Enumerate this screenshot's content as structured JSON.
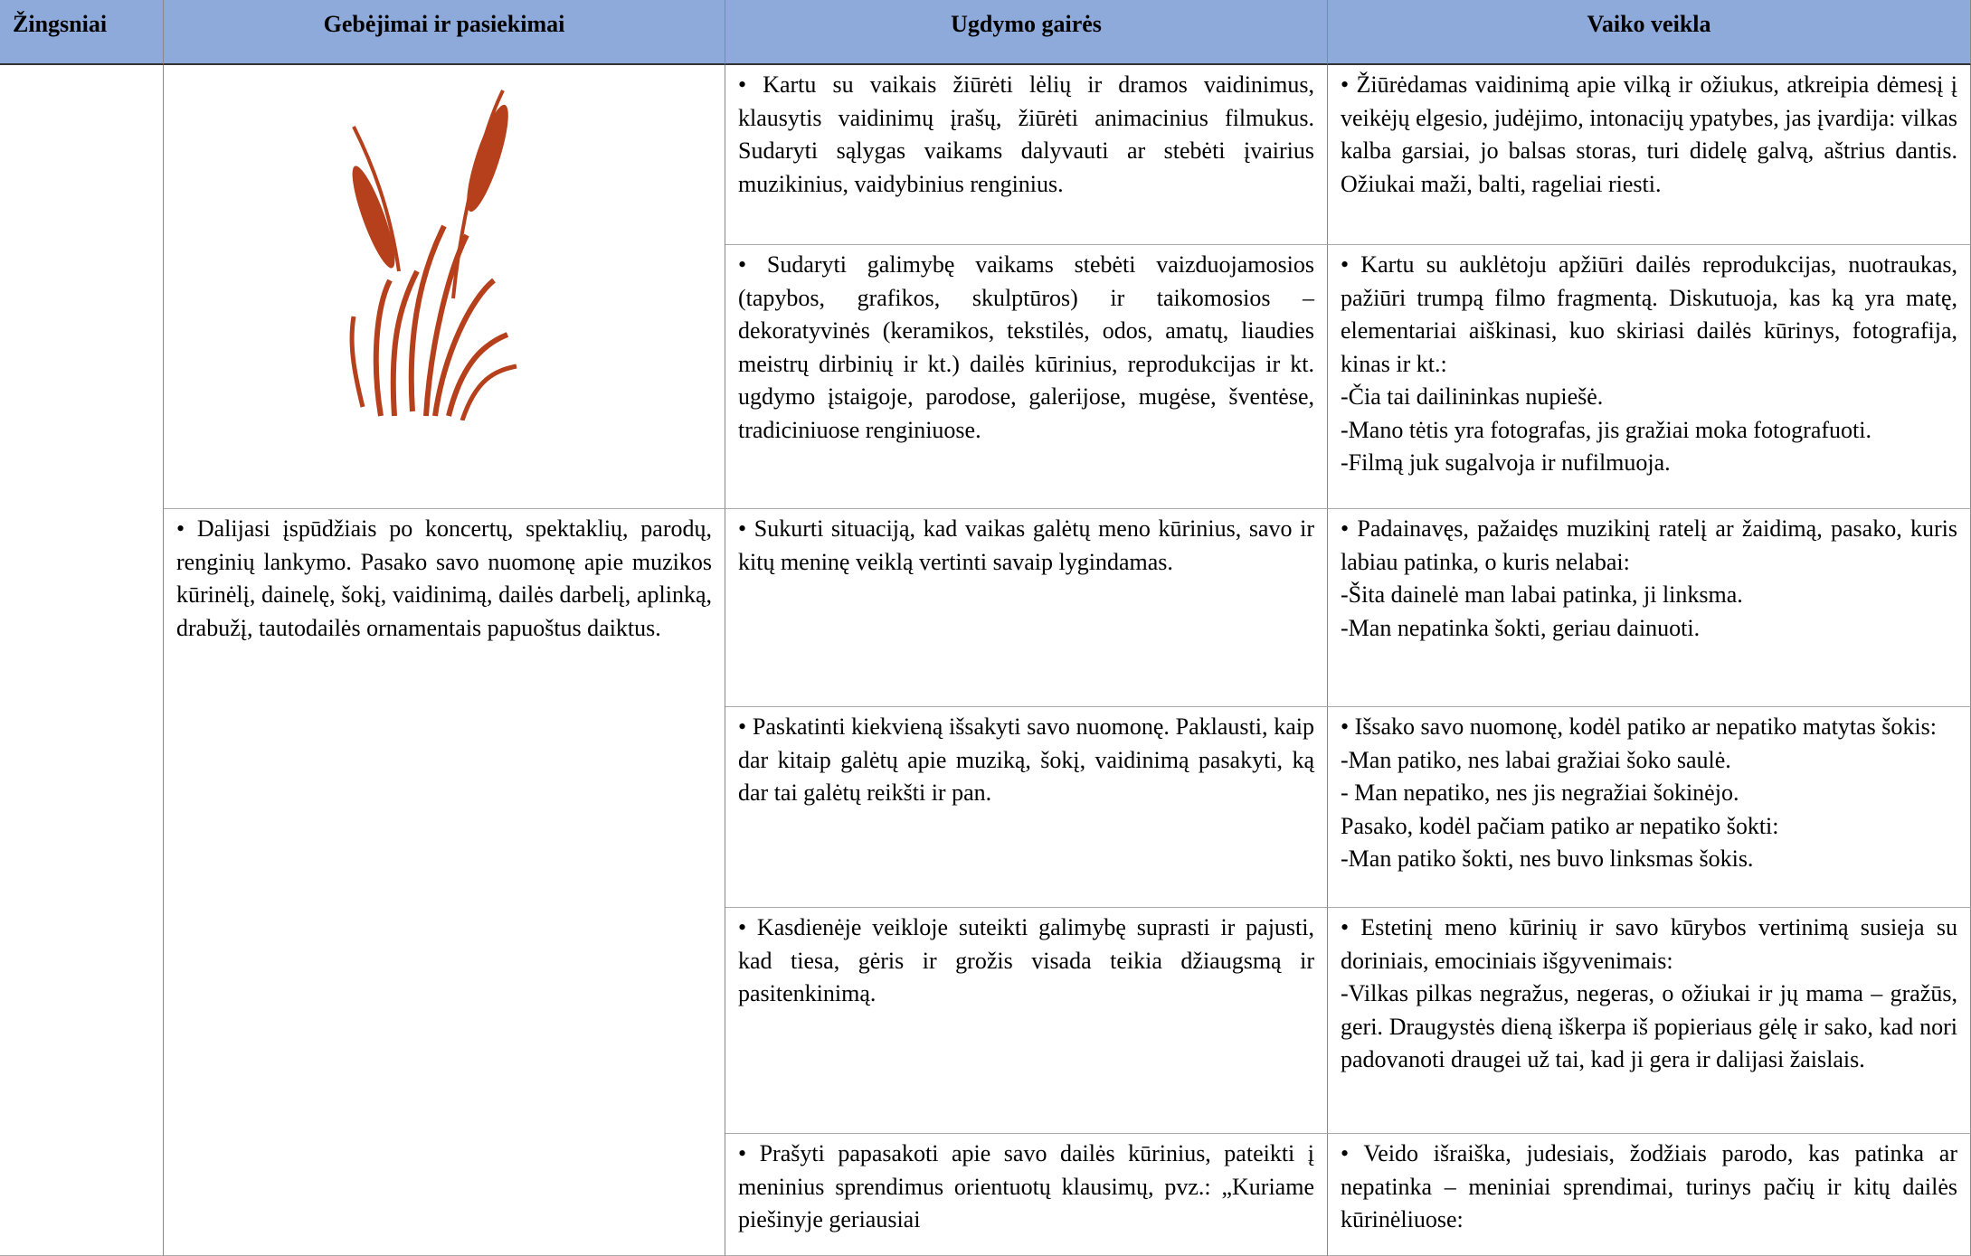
{
  "table": {
    "header": [
      "Žingsniai",
      "Gebėjimai ir pasiekimai",
      "Ugdymo gairės",
      "Vaiko veikla"
    ],
    "skills": [
      "• Dalijasi įspūdžiais po koncertų, spektaklių, parodų, renginių lankymo. Pasako savo nuomonę apie muzikos kūrinėlį, dainelę, šokį, vaidinimą, dailės darbelį, aplinką, drabužį, tautodailės ornamentais papuoštus daiktus."
    ],
    "rows": [
      {
        "guidance": [
          "• Kartu su vaikais žiūrėti lėlių ir dramos vaidinimus, klausytis vaidinimų įrašų, žiūrėti animacinius filmukus. Sudaryti sąlygas vaikams dalyvauti ar stebėti įvairius muzikinius, vaidybinius renginius."
        ],
        "activity": [
          "• Žiūrėdamas vaidinimą apie vilką ir ožiukus, atkreipia dėmesį į veikėjų elgesio, judėjimo, intonacijų ypatybes, jas įvardija: vilkas kalba garsiai, jo balsas storas, turi didelę galvą, aštrius dantis. Ožiukai maži, balti, rageliai riesti."
        ]
      },
      {
        "guidance": [
          "• Sudaryti galimybę vaikams stebėti vaizduojamosios (tapybos, grafikos, skulptūros) ir taikomosios – dekoratyvinės (keramikos, tekstilės, odos, amatų, liaudies meistrų dirbinių ir kt.) dailės kūrinius, reprodukcijas ir kt. ugdymo įstaigoje, parodose, galerijose, mugėse, šventėse, tradiciniuose renginiuose."
        ],
        "activity": [
          "• Kartu su auklėtoju apžiūri dailės reprodukcijas, nuotraukas, pažiūri trumpą filmo fragmentą. Diskutuoja, kas ką yra matę, elementariai aiškinasi, kuo skiriasi dailės kūrinys, fotografija, kinas ir kt.:",
          "-Čia tai dailininkas nupiešė.",
          "-Mano tėtis yra fotografas, jis gražiai moka fotografuoti.",
          "-Filmą juk sugalvoja ir nufilmuoja."
        ]
      },
      {
        "guidance": [
          "• Sukurti situaciją, kad vaikas galėtų meno kūrinius, savo ir kitų meninę veiklą vertinti savaip lygindamas."
        ],
        "activity": [
          "• Padainavęs, pažaidęs muzikinį ratelį ar žaidimą, pasako, kuris labiau patinka, o kuris nelabai:",
          "-Šita dainelė man labai patinka, ji linksma.",
          "-Man nepatinka šokti, geriau dainuoti."
        ]
      },
      {
        "guidance": [
          "• Paskatinti kiekvieną išsakyti savo nuomonę. Paklausti, kaip dar kitaip galėtų apie muziką, šokį, vaidinimą pasakyti, ką dar tai galėtų reikšti ir pan."
        ],
        "activity": [
          "• Išsako savo nuomonę, kodėl patiko ar nepatiko matytas šokis:",
          "-Man patiko, nes labai gražiai šoko saulė.",
          "- Man nepatiko, nes jis negražiai šokinėjo.",
          "Pasako, kodėl pačiam patiko ar nepatiko šokti:",
          "-Man patiko šokti, nes buvo linksmas šokis."
        ]
      },
      {
        "guidance": [
          "• Kasdienėje veikloje suteikti galimybę suprasti ir pajusti, kad tiesa, gėris ir grožis visada teikia džiaugsmą ir pasitenkinimą."
        ],
        "activity": [
          "• Estetinį meno kūrinių ir savo kūrybos vertinimą susieja su doriniais, emociniais išgyvenimais:",
          "-Vilkas pilkas negražus, negeras, o ožiukai ir jų mama – gražūs, geri. Draugystės dieną iškerpa iš popieriaus gėlę ir sako, kad nori padovanoti draugei už tai, kad ji gera ir dalijasi žaislais."
        ]
      },
      {
        "guidance": [
          "• Prašyti papasakoti apie savo dailės kūrinius, pateikti į meninius sprendimus orientuotų klausimų, pvz.: „Kuriame piešinyje geriausiai"
        ],
        "activity": [
          "• Veido išraiška, judesiais, žodžiais parodo, kas patinka ar nepatinka – meniniai sprendimai, turinys pačių ir kitų dailės kūrinėliuose:"
        ]
      }
    ]
  }
}
